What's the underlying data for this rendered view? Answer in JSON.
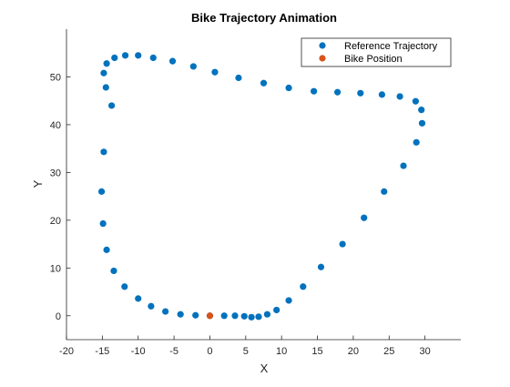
{
  "chart_data": {
    "type": "scatter",
    "title": "Bike Trajectory Animation",
    "xlabel": "X",
    "ylabel": "Y",
    "xlim": [
      -20,
      35
    ],
    "ylim": [
      -5,
      60
    ],
    "xticks": [
      -20,
      -15,
      -10,
      -5,
      0,
      5,
      10,
      15,
      20,
      25,
      30
    ],
    "yticks": [
      0,
      10,
      20,
      30,
      40,
      50
    ],
    "grid": false,
    "legend": "top-right",
    "series": [
      {
        "name": "Reference Trajectory",
        "color": "#0072BD",
        "points": [
          [
            0,
            0
          ],
          [
            2,
            0
          ],
          [
            3.5,
            0
          ],
          [
            4.8,
            -0.1
          ],
          [
            5.8,
            -0.3
          ],
          [
            6.8,
            -0.2
          ],
          [
            8,
            0.3
          ],
          [
            9.3,
            1.2
          ],
          [
            11,
            3.2
          ],
          [
            13,
            6.1
          ],
          [
            15.5,
            10.2
          ],
          [
            18.5,
            15
          ],
          [
            21.5,
            20.5
          ],
          [
            24.3,
            26
          ],
          [
            27,
            31.4
          ],
          [
            28.8,
            36.3
          ],
          [
            29.6,
            40.3
          ],
          [
            29.5,
            43.1
          ],
          [
            28.7,
            44.9
          ],
          [
            26.5,
            45.9
          ],
          [
            24,
            46.3
          ],
          [
            21,
            46.6
          ],
          [
            17.8,
            46.8
          ],
          [
            14.5,
            47
          ],
          [
            11,
            47.7
          ],
          [
            7.5,
            48.7
          ],
          [
            4,
            49.8
          ],
          [
            0.7,
            51
          ],
          [
            -2.3,
            52.2
          ],
          [
            -5.2,
            53.3
          ],
          [
            -7.9,
            54
          ],
          [
            -10,
            54.5
          ],
          [
            -11.8,
            54.5
          ],
          [
            -13.3,
            54
          ],
          [
            -14.4,
            52.8
          ],
          [
            -14.8,
            50.8
          ],
          [
            -14.5,
            47.8
          ],
          [
            -13.7,
            44
          ],
          [
            -14.8,
            34.3
          ],
          [
            -15.1,
            26
          ],
          [
            -14.9,
            19.3
          ],
          [
            -14.4,
            13.8
          ],
          [
            -13.4,
            9.4
          ],
          [
            -11.9,
            6.1
          ],
          [
            -10,
            3.6
          ],
          [
            -8.2,
            2
          ],
          [
            -6.2,
            0.9
          ],
          [
            -4.1,
            0.3
          ],
          [
            -2,
            0.1
          ]
        ]
      },
      {
        "name": "Bike Position",
        "color": "#D95319",
        "points": [
          [
            0,
            0
          ]
        ]
      }
    ]
  }
}
